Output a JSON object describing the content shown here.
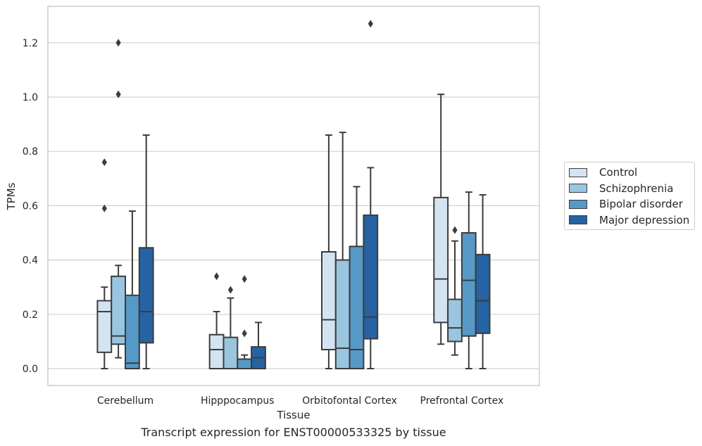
{
  "caption": "Transcript expression for ENST00000533325 by tissue",
  "chart_data": {
    "type": "box",
    "xlabel": "Tissue",
    "ylabel": "TPMs",
    "ylim": [
      -0.06,
      1.34
    ],
    "yticks": [
      0.0,
      0.2,
      0.4,
      0.6,
      0.8,
      1.0,
      1.2
    ],
    "ytick_labels": [
      "0.0",
      "0.2",
      "0.4",
      "0.6",
      "0.8",
      "1.0",
      "1.2"
    ],
    "grid": "horizontal",
    "legend_position": "right",
    "categories": [
      "Cerebellum",
      "Hipppocampus",
      "Orbitofontal Cortex",
      "Prefrontal Cortex"
    ],
    "series": [
      {
        "name": "Control",
        "color": "#d3e3f2",
        "boxes": [
          {
            "whislo": 0.0,
            "q1": 0.06,
            "med": 0.21,
            "q3": 0.25,
            "whishi": 0.3,
            "fliers": [
              0.59,
              0.76
            ]
          },
          {
            "whislo": 0.0,
            "q1": 0.0,
            "med": 0.07,
            "q3": 0.125,
            "whishi": 0.21,
            "fliers": [
              0.34
            ]
          },
          {
            "whislo": 0.0,
            "q1": 0.07,
            "med": 0.18,
            "q3": 0.43,
            "whishi": 0.86,
            "fliers": []
          },
          {
            "whislo": 0.09,
            "q1": 0.17,
            "med": 0.33,
            "q3": 0.63,
            "whishi": 1.01,
            "fliers": []
          }
        ]
      },
      {
        "name": "Schizophrenia",
        "color": "#9ac5df",
        "boxes": [
          {
            "whislo": 0.04,
            "q1": 0.09,
            "med": 0.12,
            "q3": 0.34,
            "whishi": 0.38,
            "fliers": [
              1.01,
              1.2
            ]
          },
          {
            "whislo": 0.0,
            "q1": 0.0,
            "med": 0.0,
            "q3": 0.115,
            "whishi": 0.26,
            "fliers": [
              0.29
            ]
          },
          {
            "whislo": 0.0,
            "q1": 0.0,
            "med": 0.075,
            "q3": 0.4,
            "whishi": 0.87,
            "fliers": []
          },
          {
            "whislo": 0.05,
            "q1": 0.1,
            "med": 0.15,
            "q3": 0.255,
            "whishi": 0.47,
            "fliers": [
              0.51
            ]
          }
        ]
      },
      {
        "name": "Bipolar disorder",
        "color": "#5699c7",
        "boxes": [
          {
            "whislo": 0.0,
            "q1": 0.0,
            "med": 0.02,
            "q3": 0.27,
            "whishi": 0.58,
            "fliers": []
          },
          {
            "whislo": 0.0,
            "q1": 0.0,
            "med": 0.0,
            "q3": 0.035,
            "whishi": 0.05,
            "fliers": [
              0.13,
              0.33
            ]
          },
          {
            "whislo": 0.0,
            "q1": 0.0,
            "med": 0.07,
            "q3": 0.45,
            "whishi": 0.67,
            "fliers": []
          },
          {
            "whislo": 0.0,
            "q1": 0.12,
            "med": 0.325,
            "q3": 0.5,
            "whishi": 0.65,
            "fliers": []
          }
        ]
      },
      {
        "name": "Major depression",
        "color": "#2563a3",
        "boxes": [
          {
            "whislo": 0.0,
            "q1": 0.095,
            "med": 0.21,
            "q3": 0.445,
            "whishi": 0.86,
            "fliers": []
          },
          {
            "whislo": 0.0,
            "q1": 0.0,
            "med": 0.04,
            "q3": 0.08,
            "whishi": 0.17,
            "fliers": []
          },
          {
            "whislo": 0.0,
            "q1": 0.11,
            "med": 0.19,
            "q3": 0.565,
            "whishi": 0.74,
            "fliers": [
              1.27
            ]
          },
          {
            "whislo": 0.0,
            "q1": 0.13,
            "med": 0.25,
            "q3": 0.42,
            "whishi": 0.64,
            "fliers": []
          }
        ]
      }
    ]
  }
}
